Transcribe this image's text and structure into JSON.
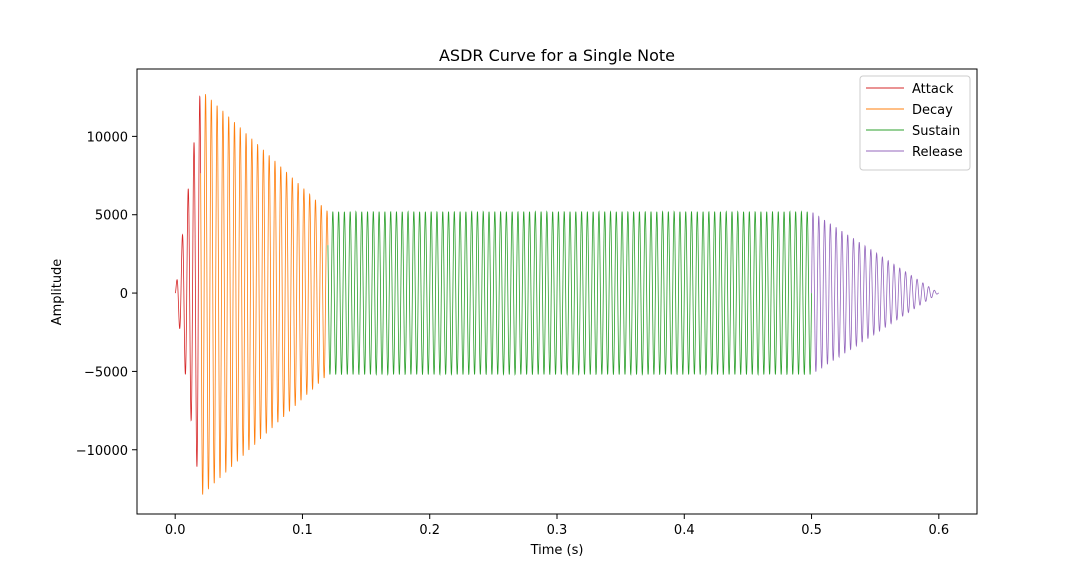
{
  "chart_data": {
    "type": "line",
    "title": "ASDR Curve for a Single Note",
    "xlabel": "Time (s)",
    "ylabel": "Amplitude",
    "xlim": [
      -0.03,
      0.63
    ],
    "ylim": [
      -14100,
      14300
    ],
    "x_ticks": [
      0.0,
      0.1,
      0.2,
      0.3,
      0.4,
      0.5,
      0.6
    ],
    "x_tick_labels": [
      "0.0",
      "0.1",
      "0.2",
      "0.3",
      "0.4",
      "0.5",
      "0.6"
    ],
    "y_ticks": [
      -10000,
      -5000,
      0,
      5000,
      10000
    ],
    "y_tick_labels": [
      "−10000",
      "−5000",
      "0",
      "5000",
      "10000"
    ],
    "grid": false,
    "legend_position": "top-right",
    "carrier_frequency_hz": 220,
    "series": [
      {
        "name": "Attack",
        "color": "#d62728",
        "x_start": 0.0,
        "x_end": 0.02,
        "envelope_start": 0,
        "envelope_end": 13000
      },
      {
        "name": "Decay",
        "color": "#ff7f0e",
        "x_start": 0.02,
        "x_end": 0.12,
        "envelope_start": 13000,
        "envelope_end": 5200
      },
      {
        "name": "Sustain",
        "color": "#2ca02c",
        "x_start": 0.12,
        "x_end": 0.5,
        "envelope_start": 5200,
        "envelope_end": 5200
      },
      {
        "name": "Release",
        "color": "#9467bd",
        "x_start": 0.5,
        "x_end": 0.6,
        "envelope_start": 5200,
        "envelope_end": 0
      }
    ]
  }
}
